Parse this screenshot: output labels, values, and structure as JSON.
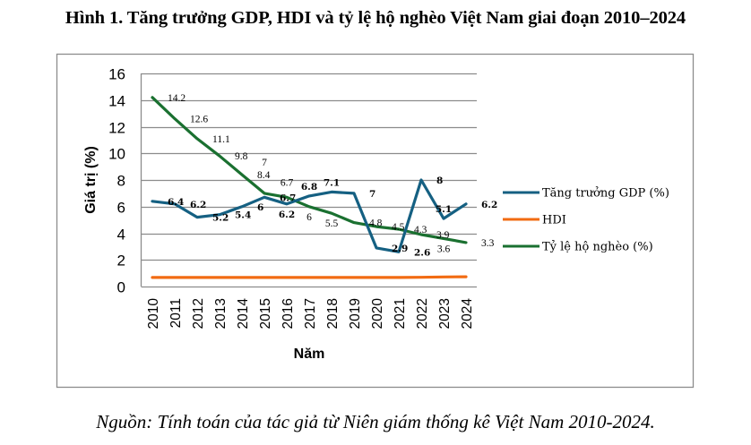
{
  "figure": {
    "title": "Hình 1. Tăng trưởng GDP, HDI và tỷ lệ hộ nghèo Việt Nam giai đoạn 2010–2024",
    "source": "Nguồn: Tính toán của tác giả từ Niên giám thống kê Việt Nam 2010-2024."
  },
  "chart_data": {
    "type": "line",
    "title": "Hình 1. Tăng trưởng GDP, HDI và tỷ lệ hộ nghèo Việt Nam giai đoạn 2010–2024",
    "xlabel": "Năm",
    "ylabel": "Giá trị (%)",
    "ylim": [
      0,
      16
    ],
    "yticks": [
      "0",
      "2",
      "4",
      "6",
      "8",
      "10",
      "12",
      "14",
      "16"
    ],
    "ytick_values": [
      0,
      2,
      4,
      6,
      8,
      10,
      12,
      14,
      16
    ],
    "grid": true,
    "legend_position": "right",
    "x": [
      "2010",
      "2011",
      "2012",
      "2013",
      "2014",
      "2015",
      "2016",
      "2017",
      "2018",
      "2019",
      "2020",
      "2021",
      "2022",
      "2023",
      "2024"
    ],
    "series": [
      {
        "name": "Tăng trưởng GDP (%)",
        "key": "gdp",
        "color": "#156082",
        "values": [
          6.4,
          6.2,
          5.2,
          5.4,
          6.0,
          6.7,
          6.2,
          6.8,
          7.1,
          7.0,
          2.9,
          2.6,
          8.0,
          5.1,
          6.2
        ],
        "labels": [
          "6.4",
          "6.2",
          "5.2",
          "5.4",
          "6",
          "6.7",
          "6.2",
          "6.8",
          "7.1",
          "7",
          "2.9",
          "2.6",
          "8",
          "5.1",
          "6.2"
        ],
        "label_style": "bold"
      },
      {
        "name": "HDI",
        "key": "hdi",
        "color": "#F26B12",
        "values": [
          0.68,
          0.68,
          0.68,
          0.68,
          0.68,
          0.68,
          0.68,
          0.68,
          0.68,
          0.68,
          0.68,
          0.68,
          0.69,
          0.72,
          0.73
        ],
        "labels": []
      },
      {
        "name": "Tỷ lệ hộ nghèo (%)",
        "key": "poverty",
        "color": "#1A7030",
        "values": [
          14.2,
          12.6,
          11.1,
          9.8,
          8.4,
          7.0,
          6.7,
          6.0,
          5.5,
          4.8,
          4.5,
          4.3,
          3.9,
          3.6,
          3.3
        ],
        "labels": [
          "14.2",
          "12.6",
          "11.1",
          "9.8",
          "8.4",
          "7",
          "6.7",
          "6",
          "5.5",
          "4.8",
          "4.5",
          "4.3",
          "3.9",
          "3.6",
          "3.3"
        ],
        "label_style": "regular"
      }
    ]
  }
}
